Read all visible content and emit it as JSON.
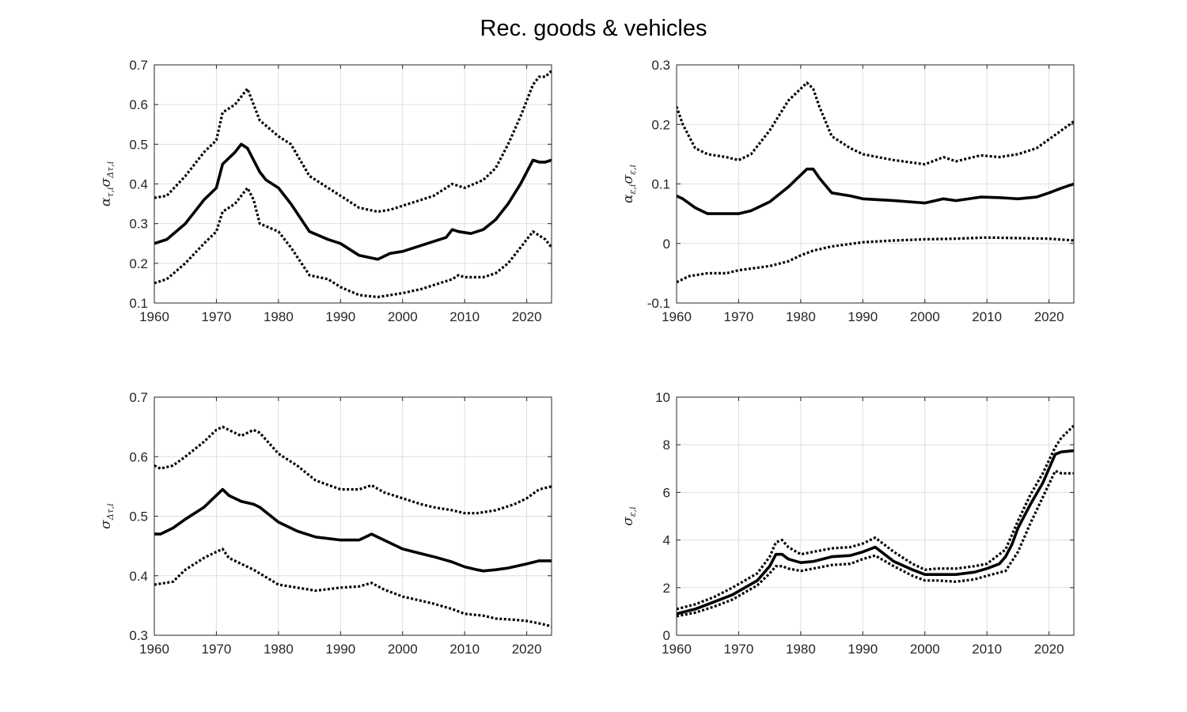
{
  "figure": {
    "title": "Rec. goods & vehicles"
  },
  "chart_data": [
    {
      "type": "line",
      "ylabel": {
        "base": "α",
        "base_sub": "τ,i",
        "second": "σ",
        "second_sub": "Δτ,i"
      },
      "xlim": [
        1960,
        2024
      ],
      "ylim": [
        0.1,
        0.7
      ],
      "xticks": [
        1960,
        1970,
        1980,
        1990,
        2000,
        2010,
        2020
      ],
      "yticks": [
        0.1,
        0.2,
        0.3,
        0.4,
        0.5,
        0.6,
        0.7
      ],
      "ytick_labels": [
        "0.1",
        "0.2",
        "0.3",
        "0.4",
        "0.5",
        "0.6",
        "0.7"
      ],
      "grid": true,
      "series": [
        {
          "style": "solid",
          "x": [
            1960,
            1962,
            1965,
            1968,
            1970,
            1971,
            1973,
            1974,
            1975,
            1976,
            1977,
            1978,
            1980,
            1982,
            1985,
            1988,
            1990,
            1993,
            1996,
            1998,
            2000,
            2002,
            2005,
            2007,
            2008,
            2009,
            2011,
            2013,
            2015,
            2017,
            2019,
            2020,
            2021,
            2022,
            2023,
            2024
          ],
          "y": [
            0.25,
            0.26,
            0.3,
            0.36,
            0.39,
            0.45,
            0.48,
            0.5,
            0.49,
            0.46,
            0.43,
            0.41,
            0.39,
            0.35,
            0.28,
            0.26,
            0.25,
            0.22,
            0.21,
            0.225,
            0.23,
            0.24,
            0.255,
            0.265,
            0.285,
            0.28,
            0.275,
            0.285,
            0.31,
            0.35,
            0.4,
            0.43,
            0.46,
            0.455,
            0.455,
            0.46
          ]
        },
        {
          "style": "dotted",
          "x": [
            1960,
            1962,
            1965,
            1968,
            1970,
            1971,
            1973,
            1975,
            1976,
            1977,
            1980,
            1982,
            1985,
            1988,
            1990,
            1993,
            1996,
            1998,
            2000,
            2003,
            2005,
            2008,
            2010,
            2013,
            2015,
            2017,
            2019,
            2021,
            2022,
            2023,
            2024
          ],
          "y": [
            0.365,
            0.37,
            0.42,
            0.48,
            0.51,
            0.58,
            0.6,
            0.64,
            0.6,
            0.56,
            0.52,
            0.5,
            0.42,
            0.39,
            0.37,
            0.34,
            0.33,
            0.335,
            0.345,
            0.36,
            0.37,
            0.4,
            0.39,
            0.41,
            0.44,
            0.5,
            0.57,
            0.65,
            0.67,
            0.67,
            0.685
          ]
        },
        {
          "style": "dotted",
          "x": [
            1960,
            1962,
            1965,
            1968,
            1970,
            1971,
            1973,
            1975,
            1976,
            1977,
            1980,
            1982,
            1985,
            1988,
            1990,
            1993,
            1996,
            1998,
            2000,
            2003,
            2005,
            2008,
            2009,
            2010,
            2013,
            2015,
            2017,
            2019,
            2021,
            2022,
            2023,
            2024
          ],
          "y": [
            0.15,
            0.16,
            0.2,
            0.25,
            0.28,
            0.33,
            0.35,
            0.39,
            0.36,
            0.3,
            0.28,
            0.24,
            0.17,
            0.16,
            0.14,
            0.12,
            0.115,
            0.12,
            0.125,
            0.135,
            0.145,
            0.16,
            0.17,
            0.165,
            0.165,
            0.175,
            0.2,
            0.24,
            0.28,
            0.27,
            0.26,
            0.24
          ]
        }
      ]
    },
    {
      "type": "line",
      "ylabel": {
        "base": "α",
        "base_sub": "ε,i",
        "second": "σ",
        "second_sub": "ε,i"
      },
      "xlim": [
        1960,
        2024
      ],
      "ylim": [
        -0.1,
        0.3
      ],
      "xticks": [
        1960,
        1970,
        1980,
        1990,
        2000,
        2010,
        2020
      ],
      "yticks": [
        -0.1,
        0,
        0.1,
        0.2,
        0.3
      ],
      "ytick_labels": [
        "-0.1",
        "0",
        "0.1",
        "0.2",
        "0.3"
      ],
      "grid": true,
      "series": [
        {
          "style": "solid",
          "x": [
            1960,
            1961,
            1963,
            1965,
            1968,
            1970,
            1972,
            1975,
            1978,
            1980,
            1981,
            1982,
            1983,
            1985,
            1988,
            1990,
            1995,
            2000,
            2003,
            2005,
            2009,
            2012,
            2015,
            2018,
            2020,
            2022,
            2024
          ],
          "y": [
            0.08,
            0.075,
            0.06,
            0.05,
            0.05,
            0.05,
            0.055,
            0.07,
            0.095,
            0.115,
            0.125,
            0.125,
            0.11,
            0.085,
            0.08,
            0.075,
            0.072,
            0.068,
            0.075,
            0.072,
            0.078,
            0.077,
            0.075,
            0.078,
            0.085,
            0.093,
            0.1
          ]
        },
        {
          "style": "dotted",
          "x": [
            1960,
            1961,
            1963,
            1965,
            1968,
            1970,
            1972,
            1975,
            1978,
            1980,
            1981,
            1982,
            1983,
            1985,
            1988,
            1990,
            1995,
            2000,
            2003,
            2005,
            2009,
            2012,
            2015,
            2018,
            2020,
            2022,
            2024
          ],
          "y": [
            0.23,
            0.2,
            0.16,
            0.15,
            0.145,
            0.14,
            0.15,
            0.19,
            0.24,
            0.26,
            0.27,
            0.26,
            0.23,
            0.18,
            0.16,
            0.15,
            0.14,
            0.133,
            0.145,
            0.138,
            0.148,
            0.145,
            0.15,
            0.16,
            0.175,
            0.19,
            0.205
          ]
        },
        {
          "style": "dotted",
          "x": [
            1960,
            1962,
            1965,
            1968,
            1970,
            1975,
            1978,
            1980,
            1982,
            1985,
            1990,
            1995,
            2000,
            2005,
            2010,
            2015,
            2020,
            2024
          ],
          "y": [
            -0.065,
            -0.055,
            -0.05,
            -0.05,
            -0.045,
            -0.038,
            -0.03,
            -0.02,
            -0.012,
            -0.005,
            0.002,
            0.005,
            0.007,
            0.008,
            0.01,
            0.009,
            0.008,
            0.005
          ]
        }
      ]
    },
    {
      "type": "line",
      "ylabel": {
        "base": "σ",
        "base_sub": "Δτ,i",
        "second": "",
        "second_sub": ""
      },
      "xlim": [
        1960,
        2024
      ],
      "ylim": [
        0.3,
        0.7
      ],
      "xticks": [
        1960,
        1970,
        1980,
        1990,
        2000,
        2010,
        2020
      ],
      "yticks": [
        0.3,
        0.4,
        0.5,
        0.6,
        0.7
      ],
      "ytick_labels": [
        "0.3",
        "0.4",
        "0.5",
        "0.6",
        "0.7"
      ],
      "grid": true,
      "series": [
        {
          "style": "solid",
          "x": [
            1960,
            1961,
            1963,
            1965,
            1968,
            1970,
            1971,
            1972,
            1974,
            1976,
            1977,
            1980,
            1983,
            1986,
            1990,
            1993,
            1995,
            1997,
            2000,
            2003,
            2005,
            2008,
            2010,
            2012,
            2013,
            2015,
            2017,
            2020,
            2022,
            2024
          ],
          "y": [
            0.47,
            0.47,
            0.48,
            0.495,
            0.515,
            0.535,
            0.545,
            0.535,
            0.525,
            0.52,
            0.515,
            0.49,
            0.475,
            0.465,
            0.46,
            0.46,
            0.47,
            0.46,
            0.445,
            0.437,
            0.432,
            0.423,
            0.415,
            0.41,
            0.408,
            0.41,
            0.413,
            0.42,
            0.425,
            0.425
          ]
        },
        {
          "style": "dotted",
          "x": [
            1960,
            1961,
            1963,
            1965,
            1968,
            1970,
            1971,
            1972,
            1974,
            1976,
            1977,
            1980,
            1983,
            1986,
            1990,
            1993,
            1995,
            1997,
            2000,
            2003,
            2005,
            2008,
            2010,
            2012,
            2015,
            2018,
            2020,
            2022,
            2024
          ],
          "y": [
            0.585,
            0.58,
            0.585,
            0.6,
            0.625,
            0.645,
            0.65,
            0.645,
            0.635,
            0.645,
            0.64,
            0.605,
            0.585,
            0.56,
            0.545,
            0.545,
            0.552,
            0.54,
            0.53,
            0.52,
            0.515,
            0.51,
            0.505,
            0.505,
            0.51,
            0.52,
            0.53,
            0.545,
            0.55
          ]
        },
        {
          "style": "dotted",
          "x": [
            1960,
            1963,
            1965,
            1968,
            1970,
            1971,
            1972,
            1974,
            1976,
            1980,
            1983,
            1986,
            1990,
            1993,
            1995,
            1997,
            2000,
            2003,
            2005,
            2008,
            2010,
            2013,
            2015,
            2018,
            2020,
            2022,
            2024
          ],
          "y": [
            0.385,
            0.39,
            0.41,
            0.43,
            0.44,
            0.445,
            0.43,
            0.42,
            0.41,
            0.385,
            0.38,
            0.375,
            0.38,
            0.382,
            0.388,
            0.377,
            0.365,
            0.358,
            0.353,
            0.344,
            0.336,
            0.333,
            0.328,
            0.326,
            0.324,
            0.32,
            0.315
          ]
        }
      ]
    },
    {
      "type": "line",
      "ylabel": {
        "base": "σ",
        "base_sub": "ε,i",
        "second": "",
        "second_sub": ""
      },
      "xlim": [
        1960,
        2024
      ],
      "ylim": [
        0,
        10
      ],
      "xticks": [
        1960,
        1970,
        1980,
        1990,
        2000,
        2010,
        2020
      ],
      "yticks": [
        0,
        2,
        4,
        6,
        8,
        10
      ],
      "ytick_labels": [
        "0",
        "2",
        "4",
        "6",
        "8",
        "10"
      ],
      "grid": true,
      "series": [
        {
          "style": "solid",
          "x": [
            1960,
            1963,
            1966,
            1969,
            1971,
            1973,
            1975,
            1976,
            1977,
            1978,
            1980,
            1982,
            1985,
            1988,
            1990,
            1991,
            1992,
            1993,
            1995,
            1998,
            2000,
            2002,
            2005,
            2008,
            2010,
            2012,
            2013,
            2014,
            2015,
            2017,
            2019,
            2020,
            2021,
            2022,
            2024
          ],
          "y": [
            0.9,
            1.1,
            1.4,
            1.7,
            2.0,
            2.3,
            2.9,
            3.4,
            3.4,
            3.2,
            3.05,
            3.1,
            3.3,
            3.35,
            3.5,
            3.6,
            3.7,
            3.5,
            3.1,
            2.75,
            2.55,
            2.55,
            2.55,
            2.65,
            2.8,
            3.0,
            3.3,
            3.8,
            4.5,
            5.5,
            6.4,
            7.0,
            7.6,
            7.7,
            7.75
          ]
        },
        {
          "style": "dotted",
          "x": [
            1960,
            1963,
            1966,
            1969,
            1971,
            1973,
            1975,
            1976,
            1977,
            1978,
            1980,
            1982,
            1985,
            1988,
            1990,
            1992,
            1993,
            1995,
            1998,
            2000,
            2002,
            2005,
            2008,
            2010,
            2013,
            2015,
            2017,
            2019,
            2021,
            2022,
            2024
          ],
          "y": [
            1.1,
            1.3,
            1.6,
            2.0,
            2.3,
            2.6,
            3.3,
            3.9,
            4.0,
            3.7,
            3.4,
            3.5,
            3.65,
            3.7,
            3.85,
            4.1,
            3.9,
            3.5,
            3.0,
            2.75,
            2.8,
            2.8,
            2.9,
            3.0,
            3.6,
            4.8,
            5.9,
            6.8,
            7.9,
            8.3,
            8.8
          ]
        },
        {
          "style": "dotted",
          "x": [
            1960,
            1963,
            1966,
            1969,
            1971,
            1973,
            1975,
            1976,
            1977,
            1978,
            1980,
            1982,
            1985,
            1988,
            1990,
            1992,
            1993,
            1995,
            1998,
            2000,
            2002,
            2005,
            2008,
            2010,
            2013,
            2015,
            2017,
            2019,
            2021,
            2022,
            2024
          ],
          "y": [
            0.8,
            0.95,
            1.2,
            1.5,
            1.8,
            2.1,
            2.6,
            2.9,
            2.9,
            2.8,
            2.7,
            2.8,
            2.95,
            3.0,
            3.2,
            3.35,
            3.2,
            2.9,
            2.5,
            2.3,
            2.3,
            2.25,
            2.35,
            2.5,
            2.7,
            3.5,
            4.7,
            5.8,
            6.9,
            6.8,
            6.8
          ]
        }
      ]
    }
  ]
}
